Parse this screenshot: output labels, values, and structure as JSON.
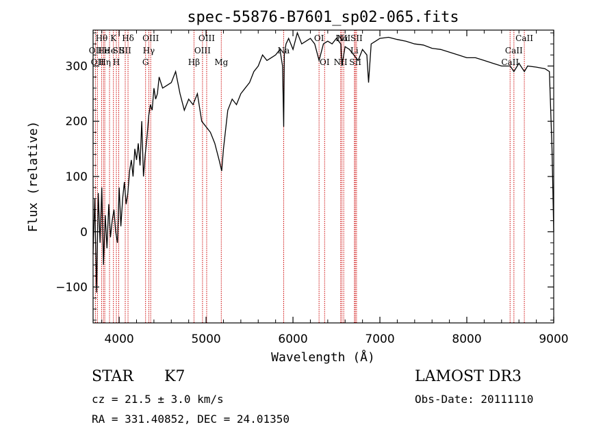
{
  "chart_data": {
    "type": "line",
    "title": "spec-55876-B7601_sp02-065.fits",
    "xlabel": "Wavelength (Å)",
    "ylabel": "Flux (relative)",
    "xlim": [
      3700,
      9000
    ],
    "ylim": [
      -165,
      365
    ],
    "x_ticks": [
      4000,
      5000,
      6000,
      7000,
      8000,
      9000
    ],
    "y_ticks": [
      -100,
      0,
      100,
      200,
      300
    ],
    "series": [
      {
        "name": "flux",
        "x": [
          3700,
          3720,
          3740,
          3760,
          3780,
          3800,
          3820,
          3840,
          3860,
          3880,
          3900,
          3920,
          3940,
          3960,
          3980,
          4000,
          4020,
          4040,
          4060,
          4080,
          4100,
          4120,
          4140,
          4160,
          4180,
          4200,
          4220,
          4240,
          4260,
          4280,
          4300,
          4320,
          4340,
          4360,
          4380,
          4400,
          4420,
          4440,
          4460,
          4480,
          4500,
          4550,
          4600,
          4650,
          4700,
          4750,
          4800,
          4850,
          4900,
          4950,
          5000,
          5050,
          5100,
          5150,
          5180,
          5200,
          5250,
          5300,
          5350,
          5400,
          5450,
          5500,
          5550,
          5600,
          5650,
          5700,
          5750,
          5800,
          5850,
          5880,
          5893,
          5900,
          5920,
          5950,
          6000,
          6050,
          6100,
          6150,
          6200,
          6250,
          6300,
          6350,
          6400,
          6450,
          6500,
          6550,
          6563,
          6600,
          6650,
          6700,
          6750,
          6800,
          6850,
          6870,
          6900,
          6950,
          7000,
          7100,
          7200,
          7300,
          7400,
          7500,
          7600,
          7700,
          7800,
          7900,
          8000,
          8100,
          8200,
          8300,
          8400,
          8500,
          8542,
          8600,
          8662,
          8700,
          8800,
          8900,
          8950,
          8980,
          8990,
          9000
        ],
        "values": [
          -40,
          60,
          -110,
          70,
          -20,
          80,
          -60,
          30,
          -30,
          50,
          -10,
          20,
          40,
          0,
          -20,
          80,
          10,
          60,
          90,
          50,
          70,
          110,
          130,
          100,
          150,
          130,
          160,
          120,
          200,
          100,
          140,
          170,
          210,
          230,
          220,
          260,
          240,
          250,
          280,
          270,
          260,
          265,
          270,
          290,
          250,
          220,
          240,
          230,
          250,
          200,
          190,
          180,
          160,
          130,
          110,
          150,
          220,
          240,
          230,
          250,
          260,
          270,
          290,
          300,
          320,
          310,
          315,
          320,
          330,
          300,
          190,
          320,
          340,
          350,
          330,
          360,
          340,
          345,
          350,
          340,
          310,
          340,
          345,
          340,
          350,
          340,
          300,
          335,
          330,
          320,
          310,
          330,
          320,
          270,
          340,
          345,
          350,
          352,
          348,
          345,
          340,
          338,
          332,
          330,
          325,
          320,
          315,
          315,
          310,
          305,
          300,
          300,
          290,
          305,
          290,
          300,
          298,
          295,
          290,
          150,
          80,
          0
        ]
      }
    ],
    "spectral_lines": [
      {
        "wavelength": 3727,
        "label": "OII",
        "row": 2
      },
      {
        "wavelength": 3750,
        "label": "OII",
        "row": 3
      },
      {
        "wavelength": 3798,
        "label": "Hθ",
        "row": 1
      },
      {
        "wavelength": 3820,
        "label": "He",
        "row": 2
      },
      {
        "wavelength": 3835,
        "label": "Hη",
        "row": 3
      },
      {
        "wavelength": 3889,
        "label": "He",
        "row": 2
      },
      {
        "wavelength": 3934,
        "label": "K",
        "row": 1
      },
      {
        "wavelength": 3968,
        "label": "H",
        "row": 3
      },
      {
        "wavelength": 3995,
        "label": "SII",
        "row": 2
      },
      {
        "wavelength": 4102,
        "label": "Hδ",
        "row": 1
      },
      {
        "wavelength": 4070,
        "label": "SII",
        "row": 2
      },
      {
        "wavelength": 4304,
        "label": "G",
        "row": 3
      },
      {
        "wavelength": 4341,
        "label": "Hγ",
        "row": 2
      },
      {
        "wavelength": 4363,
        "label": "OIII",
        "row": 1
      },
      {
        "wavelength": 4861,
        "label": "Hβ",
        "row": 3
      },
      {
        "wavelength": 4959,
        "label": "OIII",
        "row": 2
      },
      {
        "wavelength": 5007,
        "label": "OIII",
        "row": 1
      },
      {
        "wavelength": 5175,
        "label": "Mg",
        "row": 3
      },
      {
        "wavelength": 5893,
        "label": "Na",
        "row": 2
      },
      {
        "wavelength": 6300,
        "label": "OI",
        "row": 1
      },
      {
        "wavelength": 6364,
        "label": "OI",
        "row": 3
      },
      {
        "wavelength": 6548,
        "label": "NII",
        "row": 3
      },
      {
        "wavelength": 6563,
        "label": "Hα",
        "row": 1
      },
      {
        "wavelength": 6584,
        "label": "NII",
        "row": 1
      },
      {
        "wavelength": 6707,
        "label": "Li",
        "row": 2
      },
      {
        "wavelength": 6717,
        "label": "SII",
        "row": 3
      },
      {
        "wavelength": 6731,
        "label": "SII",
        "row": 1
      },
      {
        "wavelength": 8498,
        "label": "CaII",
        "row": 3
      },
      {
        "wavelength": 8542,
        "label": "CaII",
        "row": 2
      },
      {
        "wavelength": 8662,
        "label": "CaII",
        "row": 1
      }
    ]
  },
  "info": {
    "object_class": "STAR",
    "subclass": "K7",
    "redshift": "cz = 21.5 ± 3.0 km/s",
    "coords": "RA = 331.40852, DEC =  24.01350",
    "survey": "LAMOST DR3",
    "obs_date": "Obs-Date: 20111110"
  },
  "colors": {
    "line": "#000000",
    "marker": "#cc0000"
  }
}
